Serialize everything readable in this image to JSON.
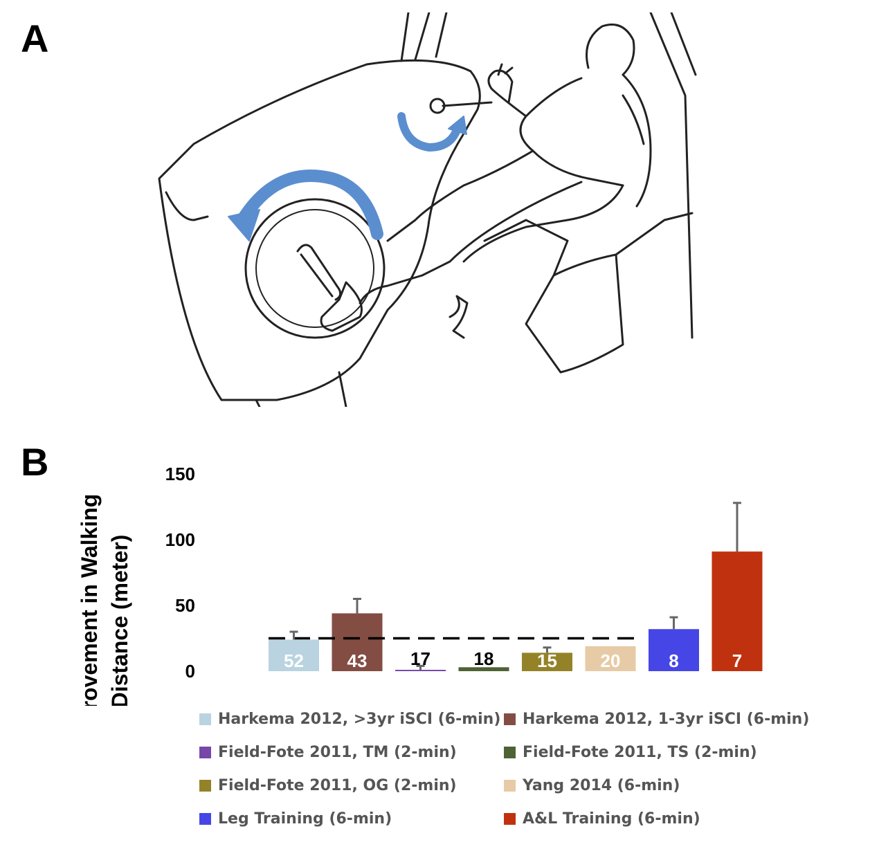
{
  "panels": {
    "a": "A",
    "b": "B"
  },
  "illustration": {
    "icon": "arm-and-leg-cycle-ergometer-icon"
  },
  "chart_data": {
    "type": "bar",
    "ylabel_line1": "Improvement in Walking",
    "ylabel_line2": "Distance (meter)",
    "ylim": [
      0,
      150
    ],
    "yticks": [
      0,
      50,
      100,
      150
    ],
    "grid": false,
    "legend_position": "bottom",
    "reference_line": 25,
    "bars": [
      {
        "name": "Harkema 2012, >3yr iSCI (6-min)",
        "value": 24,
        "error": 6,
        "n": "52",
        "color": "#b9d3e0",
        "label_color": "#ffffff"
      },
      {
        "name": "Harkema 2012, 1-3yr iSCI (6-min)",
        "value": 44,
        "error": 11,
        "n": "43",
        "color": "#834d44",
        "label_color": "#ffffff"
      },
      {
        "name": "Field-Fote 2011, TM (2-min)",
        "value": 1,
        "error": 3,
        "n": "17",
        "color": "#7748a8",
        "label_color": "#000000"
      },
      {
        "name": "Field-Fote 2011, TS (2-min)",
        "value": 3,
        "error": 0,
        "n": "18",
        "color": "#4f6236",
        "label_color": "#000000"
      },
      {
        "name": "Field-Fote 2011, OG (2-min)",
        "value": 14,
        "error": 4,
        "n": "15",
        "color": "#948228",
        "label_color": "#ffffff"
      },
      {
        "name": "Yang 2014 (6-min)",
        "value": 19,
        "error": 0,
        "n": "20",
        "color": "#e6cba6",
        "label_color": "#ffffff"
      },
      {
        "name": "Leg Training (6-min)",
        "value": 32,
        "error": 9,
        "n": "8",
        "color": "#4646e6",
        "label_color": "#ffffff"
      },
      {
        "name": "A&L Training (6-min)",
        "value": 91,
        "error": 37,
        "n": "7",
        "color": "#c0320f",
        "label_color": "#ffffff"
      }
    ]
  }
}
